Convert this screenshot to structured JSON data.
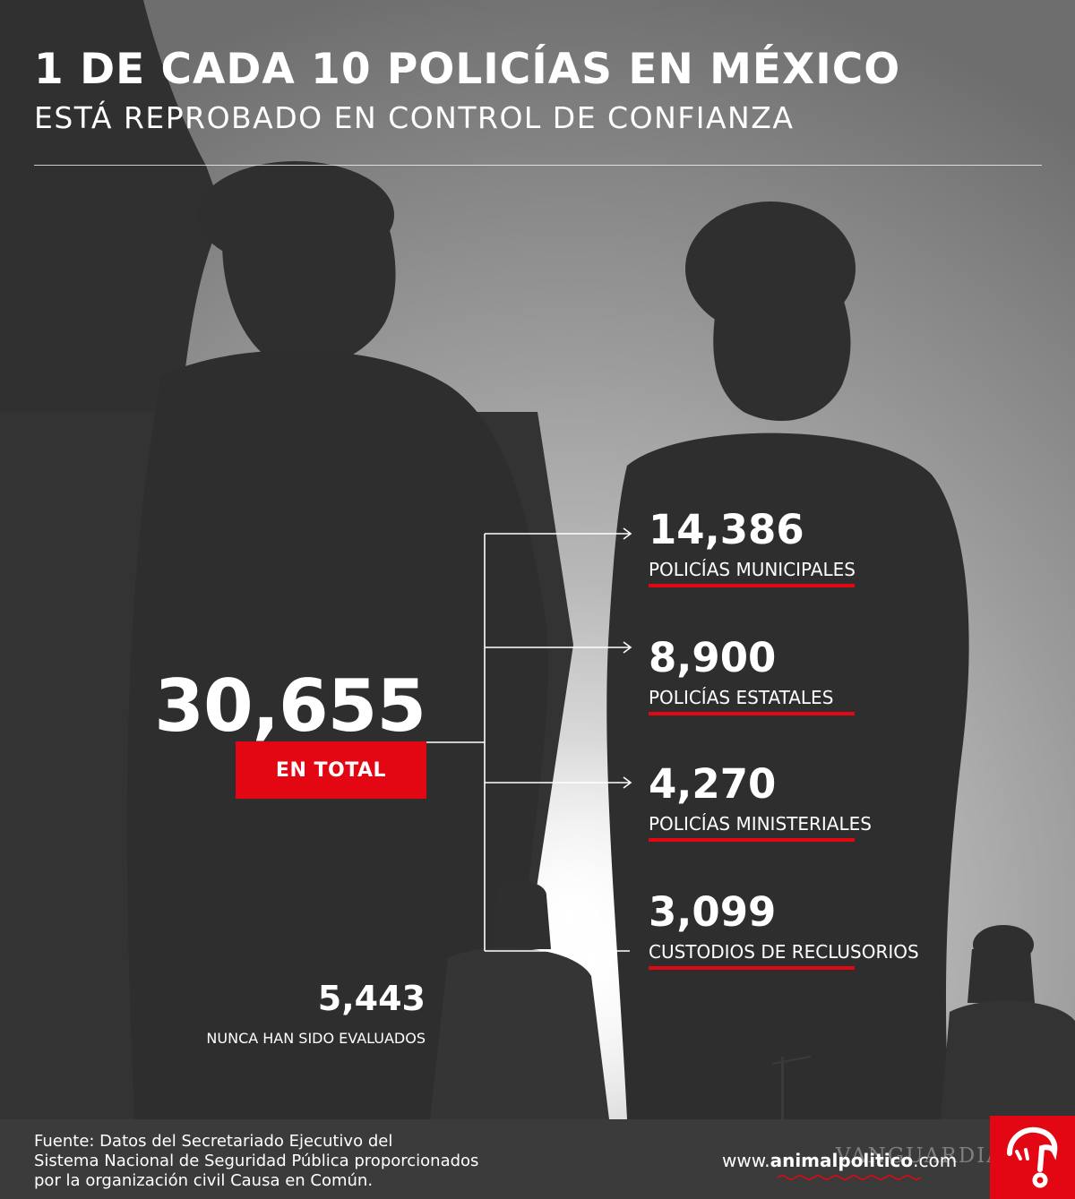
{
  "header": {
    "title": "1 DE CADA 10 POLICÍAS EN MÉXICO",
    "subtitle": "ESTÁ REPROBADO EN CONTROL DE CONFIANZA"
  },
  "total": {
    "value": "30,655",
    "label": "EN TOTAL"
  },
  "breakdown": [
    {
      "value": "14,386",
      "label": "POLICÍAS MUNICIPALES"
    },
    {
      "value": "8,900",
      "label": "POLICÍAS ESTATALES"
    },
    {
      "value": "4,270",
      "label": "POLICÍAS MINISTERIALES"
    },
    {
      "value": "3,099",
      "label": "CUSTODIOS DE RECLUSORIOS"
    }
  ],
  "never_evaluated": {
    "value": "5,443",
    "label": "NUNCA HAN SIDO EVALUADOS"
  },
  "footer": {
    "source_lines": [
      "Fuente: Datos del Secretariado Ejecutivo del",
      "Sistema Nacional de Seguridad Pública proporcionados",
      "por la organización civil Causa en Común."
    ],
    "site_prefix": "www.",
    "site_brand": "animalpolitico",
    "site_suffix": ".com",
    "watermark": "VANGUARDIA"
  },
  "colors": {
    "accent": "#e30613",
    "text": "#ffffff",
    "background": "#3a3a3a"
  },
  "icons": {
    "connector": "arrow-right-icon",
    "logo": "animal-politico-logo"
  }
}
